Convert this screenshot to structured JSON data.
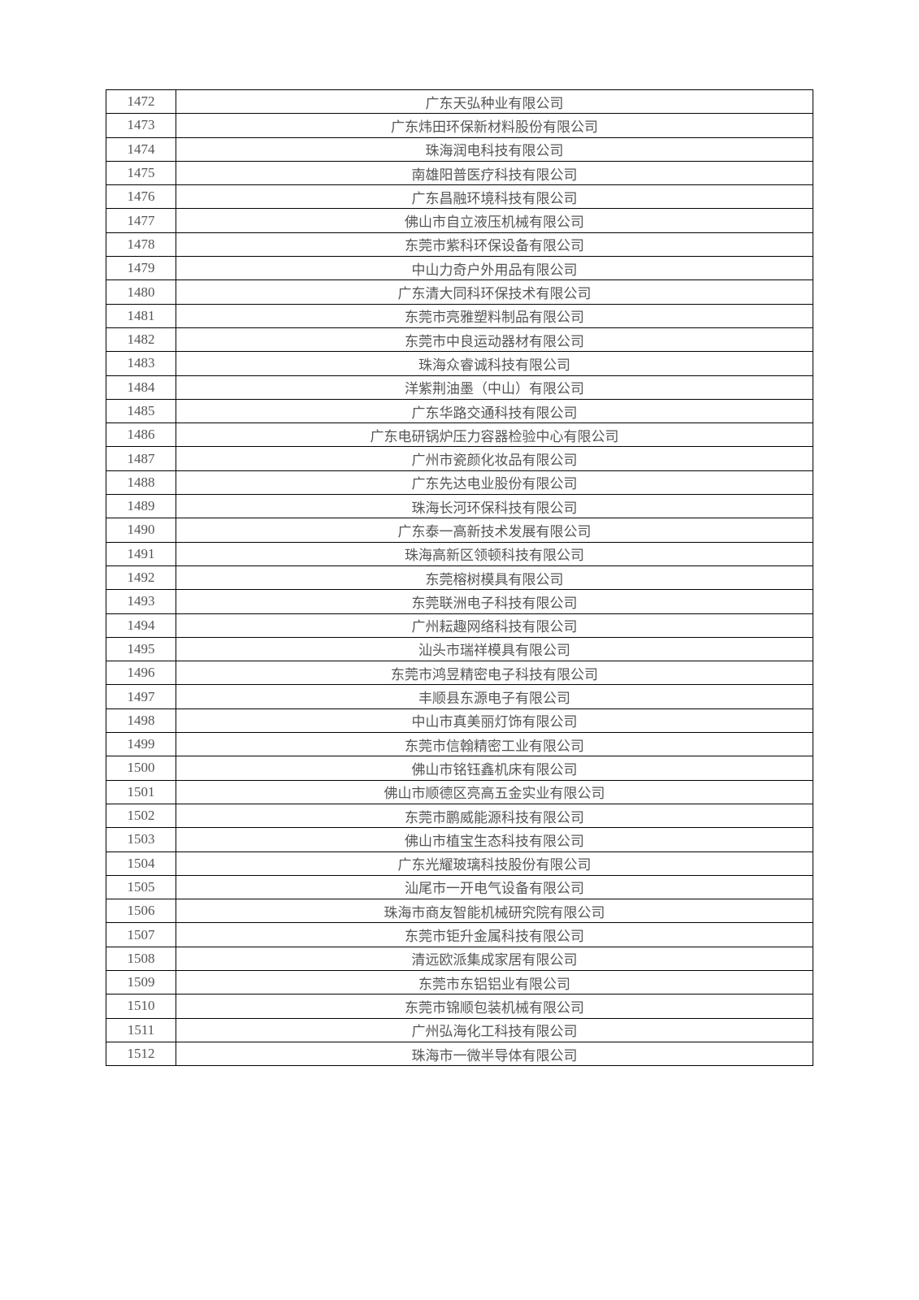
{
  "table": {
    "rows": [
      {
        "num": "1472",
        "name": "广东天弘种业有限公司"
      },
      {
        "num": "1473",
        "name": "广东炜田环保新材料股份有限公司"
      },
      {
        "num": "1474",
        "name": "珠海润电科技有限公司"
      },
      {
        "num": "1475",
        "name": "南雄阳普医疗科技有限公司"
      },
      {
        "num": "1476",
        "name": "广东昌融环境科技有限公司"
      },
      {
        "num": "1477",
        "name": "佛山市自立液压机械有限公司"
      },
      {
        "num": "1478",
        "name": "东莞市紫科环保设备有限公司"
      },
      {
        "num": "1479",
        "name": "中山力奇户外用品有限公司"
      },
      {
        "num": "1480",
        "name": "广东清大同科环保技术有限公司"
      },
      {
        "num": "1481",
        "name": "东莞市亮雅塑料制品有限公司"
      },
      {
        "num": "1482",
        "name": "东莞市中良运动器材有限公司"
      },
      {
        "num": "1483",
        "name": "珠海众睿诚科技有限公司"
      },
      {
        "num": "1484",
        "name": "洋紫荆油墨（中山）有限公司"
      },
      {
        "num": "1485",
        "name": "广东华路交通科技有限公司"
      },
      {
        "num": "1486",
        "name": "广东电研锅炉压力容器检验中心有限公司"
      },
      {
        "num": "1487",
        "name": "广州市瓷颜化妆品有限公司"
      },
      {
        "num": "1488",
        "name": "广东先达电业股份有限公司"
      },
      {
        "num": "1489",
        "name": "珠海长河环保科技有限公司"
      },
      {
        "num": "1490",
        "name": "广东泰一高新技术发展有限公司"
      },
      {
        "num": "1491",
        "name": "珠海高新区领顿科技有限公司"
      },
      {
        "num": "1492",
        "name": "东莞榕树模具有限公司"
      },
      {
        "num": "1493",
        "name": "东莞联洲电子科技有限公司"
      },
      {
        "num": "1494",
        "name": "广州耘趣网络科技有限公司"
      },
      {
        "num": "1495",
        "name": "汕头市瑞祥模具有限公司"
      },
      {
        "num": "1496",
        "name": "东莞市鸿昱精密电子科技有限公司"
      },
      {
        "num": "1497",
        "name": "丰顺县东源电子有限公司"
      },
      {
        "num": "1498",
        "name": "中山市真美丽灯饰有限公司"
      },
      {
        "num": "1499",
        "name": "东莞市信翰精密工业有限公司"
      },
      {
        "num": "1500",
        "name": "佛山市铭钰鑫机床有限公司"
      },
      {
        "num": "1501",
        "name": "佛山市顺德区亮高五金实业有限公司"
      },
      {
        "num": "1502",
        "name": "东莞市鹏威能源科技有限公司"
      },
      {
        "num": "1503",
        "name": "佛山市植宝生态科技有限公司"
      },
      {
        "num": "1504",
        "name": "广东光耀玻璃科技股份有限公司"
      },
      {
        "num": "1505",
        "name": "汕尾市一开电气设备有限公司"
      },
      {
        "num": "1506",
        "name": "珠海市商友智能机械研究院有限公司"
      },
      {
        "num": "1507",
        "name": "东莞市钜升金属科技有限公司"
      },
      {
        "num": "1508",
        "name": "清远欧派集成家居有限公司"
      },
      {
        "num": "1509",
        "name": "东莞市东铝铝业有限公司"
      },
      {
        "num": "1510",
        "name": "东莞市锦顺包装机械有限公司"
      },
      {
        "num": "1511",
        "name": "广州弘海化工科技有限公司"
      },
      {
        "num": "1512",
        "name": "珠海市一微半导体有限公司"
      }
    ],
    "border_color": "#000000",
    "text_color": "#555555",
    "font_size": 17,
    "col_num_width": 86,
    "row_height": 29.3,
    "background_color": "#ffffff"
  }
}
